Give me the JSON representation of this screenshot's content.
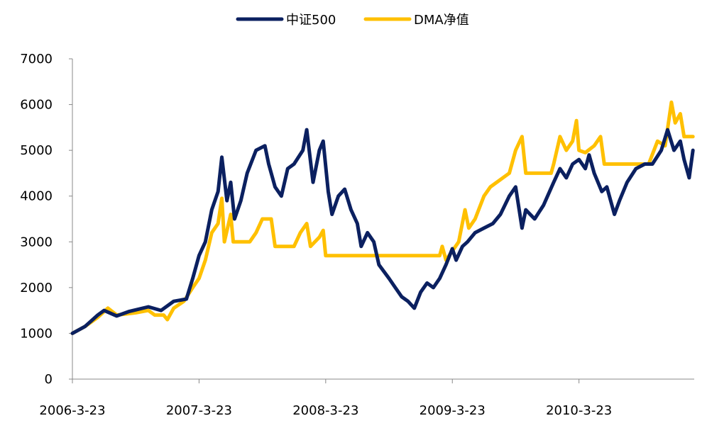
{
  "chart_data": {
    "type": "line",
    "title": "",
    "xlabel": "",
    "ylabel": "",
    "legend_position": "top-center",
    "ylim": [
      0,
      7000
    ],
    "yticks": [
      0,
      1000,
      2000,
      3000,
      4000,
      5000,
      6000,
      7000
    ],
    "xlim": [
      0,
      4.91
    ],
    "xticks": [
      {
        "x": 0,
        "label": "2006-3-23"
      },
      {
        "x": 1,
        "label": "2007-3-23"
      },
      {
        "x": 2,
        "label": "2008-3-23"
      },
      {
        "x": 3,
        "label": "2009-3-23"
      },
      {
        "x": 4,
        "label": "2010-3-23"
      }
    ],
    "x_unit": "years since 2006-3-23",
    "grid": false,
    "series": [
      {
        "name": "中证500",
        "color": "#0B2060",
        "points": [
          [
            0,
            1000
          ],
          [
            0.1,
            1150
          ],
          [
            0.2,
            1400
          ],
          [
            0.25,
            1500
          ],
          [
            0.35,
            1380
          ],
          [
            0.45,
            1480
          ],
          [
            0.6,
            1580
          ],
          [
            0.7,
            1500
          ],
          [
            0.8,
            1700
          ],
          [
            0.9,
            1750
          ],
          [
            0.95,
            2200
          ],
          [
            1.0,
            2700
          ],
          [
            1.05,
            3000
          ],
          [
            1.1,
            3700
          ],
          [
            1.15,
            4100
          ],
          [
            1.18,
            4850
          ],
          [
            1.22,
            3900
          ],
          [
            1.25,
            4300
          ],
          [
            1.28,
            3500
          ],
          [
            1.33,
            3900
          ],
          [
            1.38,
            4500
          ],
          [
            1.45,
            5000
          ],
          [
            1.52,
            5100
          ],
          [
            1.55,
            4700
          ],
          [
            1.6,
            4200
          ],
          [
            1.65,
            4000
          ],
          [
            1.7,
            4600
          ],
          [
            1.75,
            4700
          ],
          [
            1.82,
            5000
          ],
          [
            1.85,
            5450
          ],
          [
            1.9,
            4300
          ],
          [
            1.95,
            5000
          ],
          [
            1.98,
            5200
          ],
          [
            2.02,
            4100
          ],
          [
            2.05,
            3600
          ],
          [
            2.1,
            4000
          ],
          [
            2.15,
            4150
          ],
          [
            2.2,
            3700
          ],
          [
            2.25,
            3400
          ],
          [
            2.28,
            2900
          ],
          [
            2.33,
            3200
          ],
          [
            2.38,
            3000
          ],
          [
            2.42,
            2500
          ],
          [
            2.5,
            2200
          ],
          [
            2.55,
            2000
          ],
          [
            2.6,
            1800
          ],
          [
            2.65,
            1700
          ],
          [
            2.7,
            1550
          ],
          [
            2.75,
            1900
          ],
          [
            2.8,
            2100
          ],
          [
            2.85,
            2000
          ],
          [
            2.9,
            2200
          ],
          [
            2.95,
            2500
          ],
          [
            3.0,
            2850
          ],
          [
            3.03,
            2600
          ],
          [
            3.08,
            2900
          ],
          [
            3.12,
            3000
          ],
          [
            3.18,
            3200
          ],
          [
            3.25,
            3300
          ],
          [
            3.32,
            3400
          ],
          [
            3.38,
            3600
          ],
          [
            3.45,
            4000
          ],
          [
            3.5,
            4200
          ],
          [
            3.55,
            3300
          ],
          [
            3.58,
            3700
          ],
          [
            3.65,
            3500
          ],
          [
            3.72,
            3800
          ],
          [
            3.8,
            4300
          ],
          [
            3.85,
            4600
          ],
          [
            3.9,
            4400
          ],
          [
            3.95,
            4700
          ],
          [
            4.0,
            4800
          ],
          [
            4.05,
            4600
          ],
          [
            4.08,
            4900
          ],
          [
            4.12,
            4500
          ],
          [
            4.18,
            4100
          ],
          [
            4.22,
            4200
          ],
          [
            4.28,
            3600
          ],
          [
            4.32,
            3900
          ],
          [
            4.38,
            4300
          ],
          [
            4.45,
            4600
          ],
          [
            4.52,
            4700
          ],
          [
            4.58,
            4700
          ],
          [
            4.65,
            5000
          ],
          [
            4.7,
            5450
          ],
          [
            4.75,
            5000
          ],
          [
            4.8,
            5200
          ],
          [
            4.83,
            4800
          ],
          [
            4.87,
            4400
          ],
          [
            4.9,
            5000
          ]
        ]
      },
      {
        "name": "DMA净值",
        "color": "#FFC000",
        "points": [
          [
            0,
            1000
          ],
          [
            0.1,
            1150
          ],
          [
            0.2,
            1350
          ],
          [
            0.28,
            1550
          ],
          [
            0.35,
            1400
          ],
          [
            0.5,
            1450
          ],
          [
            0.6,
            1500
          ],
          [
            0.65,
            1400
          ],
          [
            0.72,
            1400
          ],
          [
            0.75,
            1300
          ],
          [
            0.8,
            1550
          ],
          [
            0.88,
            1700
          ],
          [
            0.95,
            2000
          ],
          [
            1.0,
            2200
          ],
          [
            1.05,
            2600
          ],
          [
            1.1,
            3200
          ],
          [
            1.15,
            3400
          ],
          [
            1.18,
            3950
          ],
          [
            1.2,
            3000
          ],
          [
            1.25,
            3600
          ],
          [
            1.27,
            3000
          ],
          [
            1.4,
            3000
          ],
          [
            1.45,
            3200
          ],
          [
            1.5,
            3500
          ],
          [
            1.57,
            3500
          ],
          [
            1.6,
            2900
          ],
          [
            1.75,
            2900
          ],
          [
            1.8,
            3200
          ],
          [
            1.85,
            3400
          ],
          [
            1.88,
            2900
          ],
          [
            1.95,
            3100
          ],
          [
            1.98,
            3250
          ],
          [
            2.0,
            2700
          ],
          [
            2.9,
            2700
          ],
          [
            2.92,
            2900
          ],
          [
            2.95,
            2600
          ],
          [
            3.0,
            2800
          ],
          [
            3.05,
            3000
          ],
          [
            3.1,
            3700
          ],
          [
            3.13,
            3300
          ],
          [
            3.18,
            3500
          ],
          [
            3.25,
            4000
          ],
          [
            3.3,
            4200
          ],
          [
            3.35,
            4300
          ],
          [
            3.45,
            4500
          ],
          [
            3.5,
            5000
          ],
          [
            3.55,
            5300
          ],
          [
            3.58,
            4500
          ],
          [
            3.78,
            4500
          ],
          [
            3.8,
            4700
          ],
          [
            3.85,
            5300
          ],
          [
            3.9,
            5000
          ],
          [
            3.95,
            5200
          ],
          [
            3.98,
            5650
          ],
          [
            4.0,
            5000
          ],
          [
            4.05,
            4950
          ],
          [
            4.12,
            5100
          ],
          [
            4.17,
            5300
          ],
          [
            4.2,
            4700
          ],
          [
            4.55,
            4700
          ],
          [
            4.62,
            5200
          ],
          [
            4.68,
            5100
          ],
          [
            4.73,
            6050
          ],
          [
            4.76,
            5600
          ],
          [
            4.8,
            5800
          ],
          [
            4.83,
            5300
          ],
          [
            4.9,
            5300
          ]
        ]
      }
    ]
  }
}
